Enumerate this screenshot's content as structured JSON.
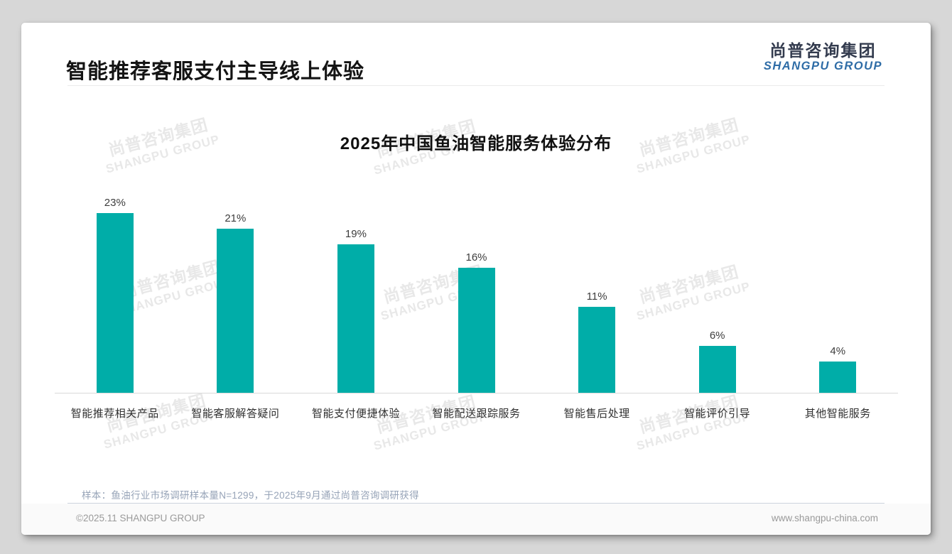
{
  "header": {
    "title": "智能推荐客服支付主导线上体验"
  },
  "logo": {
    "cn": "尚普咨询集团",
    "en": "SHANGPU GROUP"
  },
  "chart_data": {
    "type": "bar",
    "title": "2025年中国鱼油智能服务体验分布",
    "categories": [
      "智能推荐相关产品",
      "智能客服解答疑问",
      "智能支付便捷体验",
      "智能配送跟踪服务",
      "智能售后处理",
      "智能评价引导",
      "其他智能服务"
    ],
    "values": [
      23,
      21,
      19,
      16,
      11,
      6,
      4
    ],
    "value_labels": [
      "23%",
      "21%",
      "19%",
      "16%",
      "11%",
      "6%",
      "4%"
    ],
    "xlabel": "",
    "ylabel": "",
    "ylim": [
      0,
      25
    ],
    "grid": false,
    "legend": false
  },
  "watermark": {
    "line1": "尚普咨询集团",
    "line2": "SHANGPU GROUP"
  },
  "note": {
    "text": "样本：鱼油行业市场调研样本量N=1299，于2025年9月通过尚普咨询调研获得"
  },
  "footer": {
    "left": "©2025.11 SHANGPU GROUP",
    "right": "www.shangpu-china.com"
  },
  "colors": {
    "bar": "#00ADA8",
    "logo_blue": "#2E6CA6",
    "logo_dark": "#333B4E",
    "note_text": "#96A3B7",
    "watermark": "#E8E8E8"
  }
}
